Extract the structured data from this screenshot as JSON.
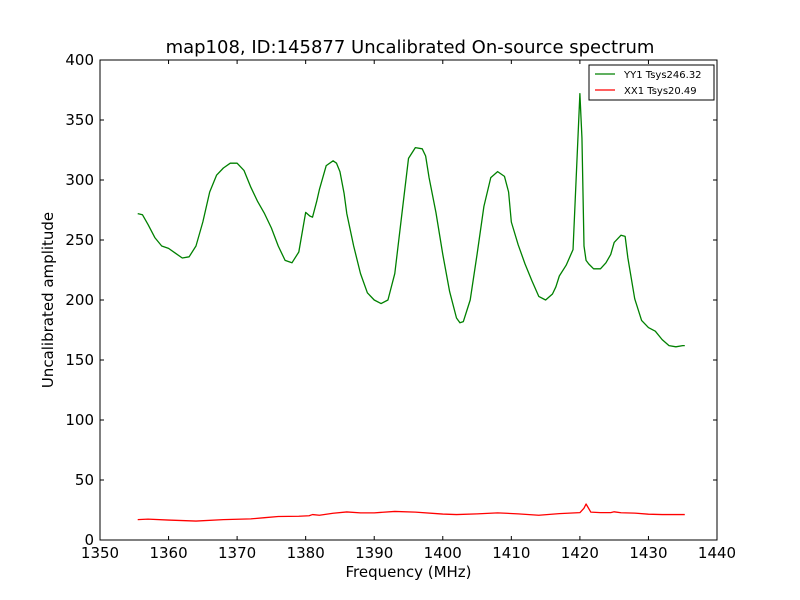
{
  "chart_data": {
    "type": "line",
    "title": "map108, ID:145877 Uncalibrated On-source spectrum",
    "xlabel": "Frequency (MHz)",
    "ylabel": "Uncalibrated amplitude",
    "xlim": [
      1350,
      1440
    ],
    "ylim": [
      0,
      400
    ],
    "xticks": [
      1350,
      1360,
      1370,
      1380,
      1390,
      1400,
      1410,
      1420,
      1430,
      1440
    ],
    "yticks": [
      0,
      50,
      100,
      150,
      200,
      250,
      300,
      350,
      400
    ],
    "xtick_labels": [
      "1350",
      "1360",
      "1370",
      "1380",
      "1390",
      "1400",
      "1410",
      "1420",
      "1430",
      "1440"
    ],
    "ytick_labels": [
      "0",
      "50",
      "100",
      "150",
      "200",
      "250",
      "300",
      "350",
      "400"
    ],
    "grid": false,
    "legend_position": "top-right",
    "series": [
      {
        "name": "YY1 Tsys246.32",
        "color": "#008000",
        "x": [
          1355.5,
          1356.2,
          1357,
          1358,
          1359,
          1360,
          1361,
          1362,
          1363,
          1364,
          1365,
          1366,
          1367,
          1368,
          1369,
          1370,
          1371,
          1372,
          1373,
          1374,
          1375,
          1376,
          1377,
          1378,
          1379,
          1380,
          1380.6,
          1381,
          1381.6,
          1382,
          1383,
          1384,
          1384.5,
          1385,
          1385.6,
          1386,
          1387,
          1388,
          1389,
          1390,
          1391,
          1392,
          1393,
          1394,
          1395,
          1396,
          1397,
          1397.5,
          1398,
          1399,
          1400,
          1401,
          1402,
          1402.5,
          1403,
          1404,
          1405,
          1406,
          1407,
          1408,
          1409,
          1409.6,
          1410,
          1411,
          1412,
          1413,
          1414,
          1415,
          1416,
          1416.5,
          1417,
          1418,
          1419,
          1420,
          1420.3,
          1420.6,
          1420.9,
          1421.3,
          1422,
          1423,
          1423.8,
          1424.5,
          1425,
          1426,
          1426.6,
          1427,
          1428,
          1429,
          1430,
          1431,
          1432,
          1433,
          1434,
          1435,
          1435.3
        ],
        "values": [
          272,
          271,
          263,
          252,
          245,
          243,
          239,
          235,
          236,
          245,
          265,
          290,
          304,
          310,
          314,
          314,
          308,
          294,
          282,
          272,
          260,
          245,
          233,
          231,
          240,
          273,
          270,
          269,
          282,
          292,
          312,
          316,
          314,
          307,
          289,
          272,
          245,
          222,
          206,
          200,
          197,
          200,
          222,
          270,
          318,
          327,
          326,
          320,
          302,
          273,
          238,
          207,
          185,
          181,
          182,
          200,
          238,
          278,
          302,
          307,
          303,
          290,
          265,
          246,
          230,
          216,
          203,
          200,
          205,
          211,
          220,
          229,
          242,
          372,
          335,
          245,
          233,
          230,
          226,
          226,
          231,
          238,
          248,
          254,
          253,
          235,
          201,
          183,
          177,
          174,
          167,
          162,
          161,
          162,
          162
        ]
      },
      {
        "name": "XX1 Tsys20.49",
        "color": "#ff0000",
        "x": [
          1355.5,
          1357,
          1360,
          1364,
          1368,
          1372,
          1374,
          1376,
          1379,
          1380.5,
          1381,
          1382,
          1384,
          1386,
          1388,
          1390,
          1393,
          1396,
          1400,
          1402,
          1405,
          1408,
          1411,
          1414,
          1417,
          1420,
          1420.6,
          1420.9,
          1421.6,
          1423,
          1424.5,
          1425,
          1426,
          1428,
          1430,
          1432,
          1435.3
        ],
        "values": [
          17,
          17.4,
          16.6,
          15.8,
          17,
          17.6,
          18.6,
          19.6,
          19.8,
          20.2,
          21.2,
          20.6,
          22.3,
          23.4,
          22.6,
          22.6,
          23.8,
          23.2,
          21.6,
          21.2,
          21.8,
          22.6,
          21.8,
          20.6,
          22,
          22.8,
          26.5,
          30,
          23.2,
          22.8,
          22.8,
          23.5,
          22.7,
          22.4,
          21.5,
          21.2,
          21.2
        ]
      }
    ]
  }
}
